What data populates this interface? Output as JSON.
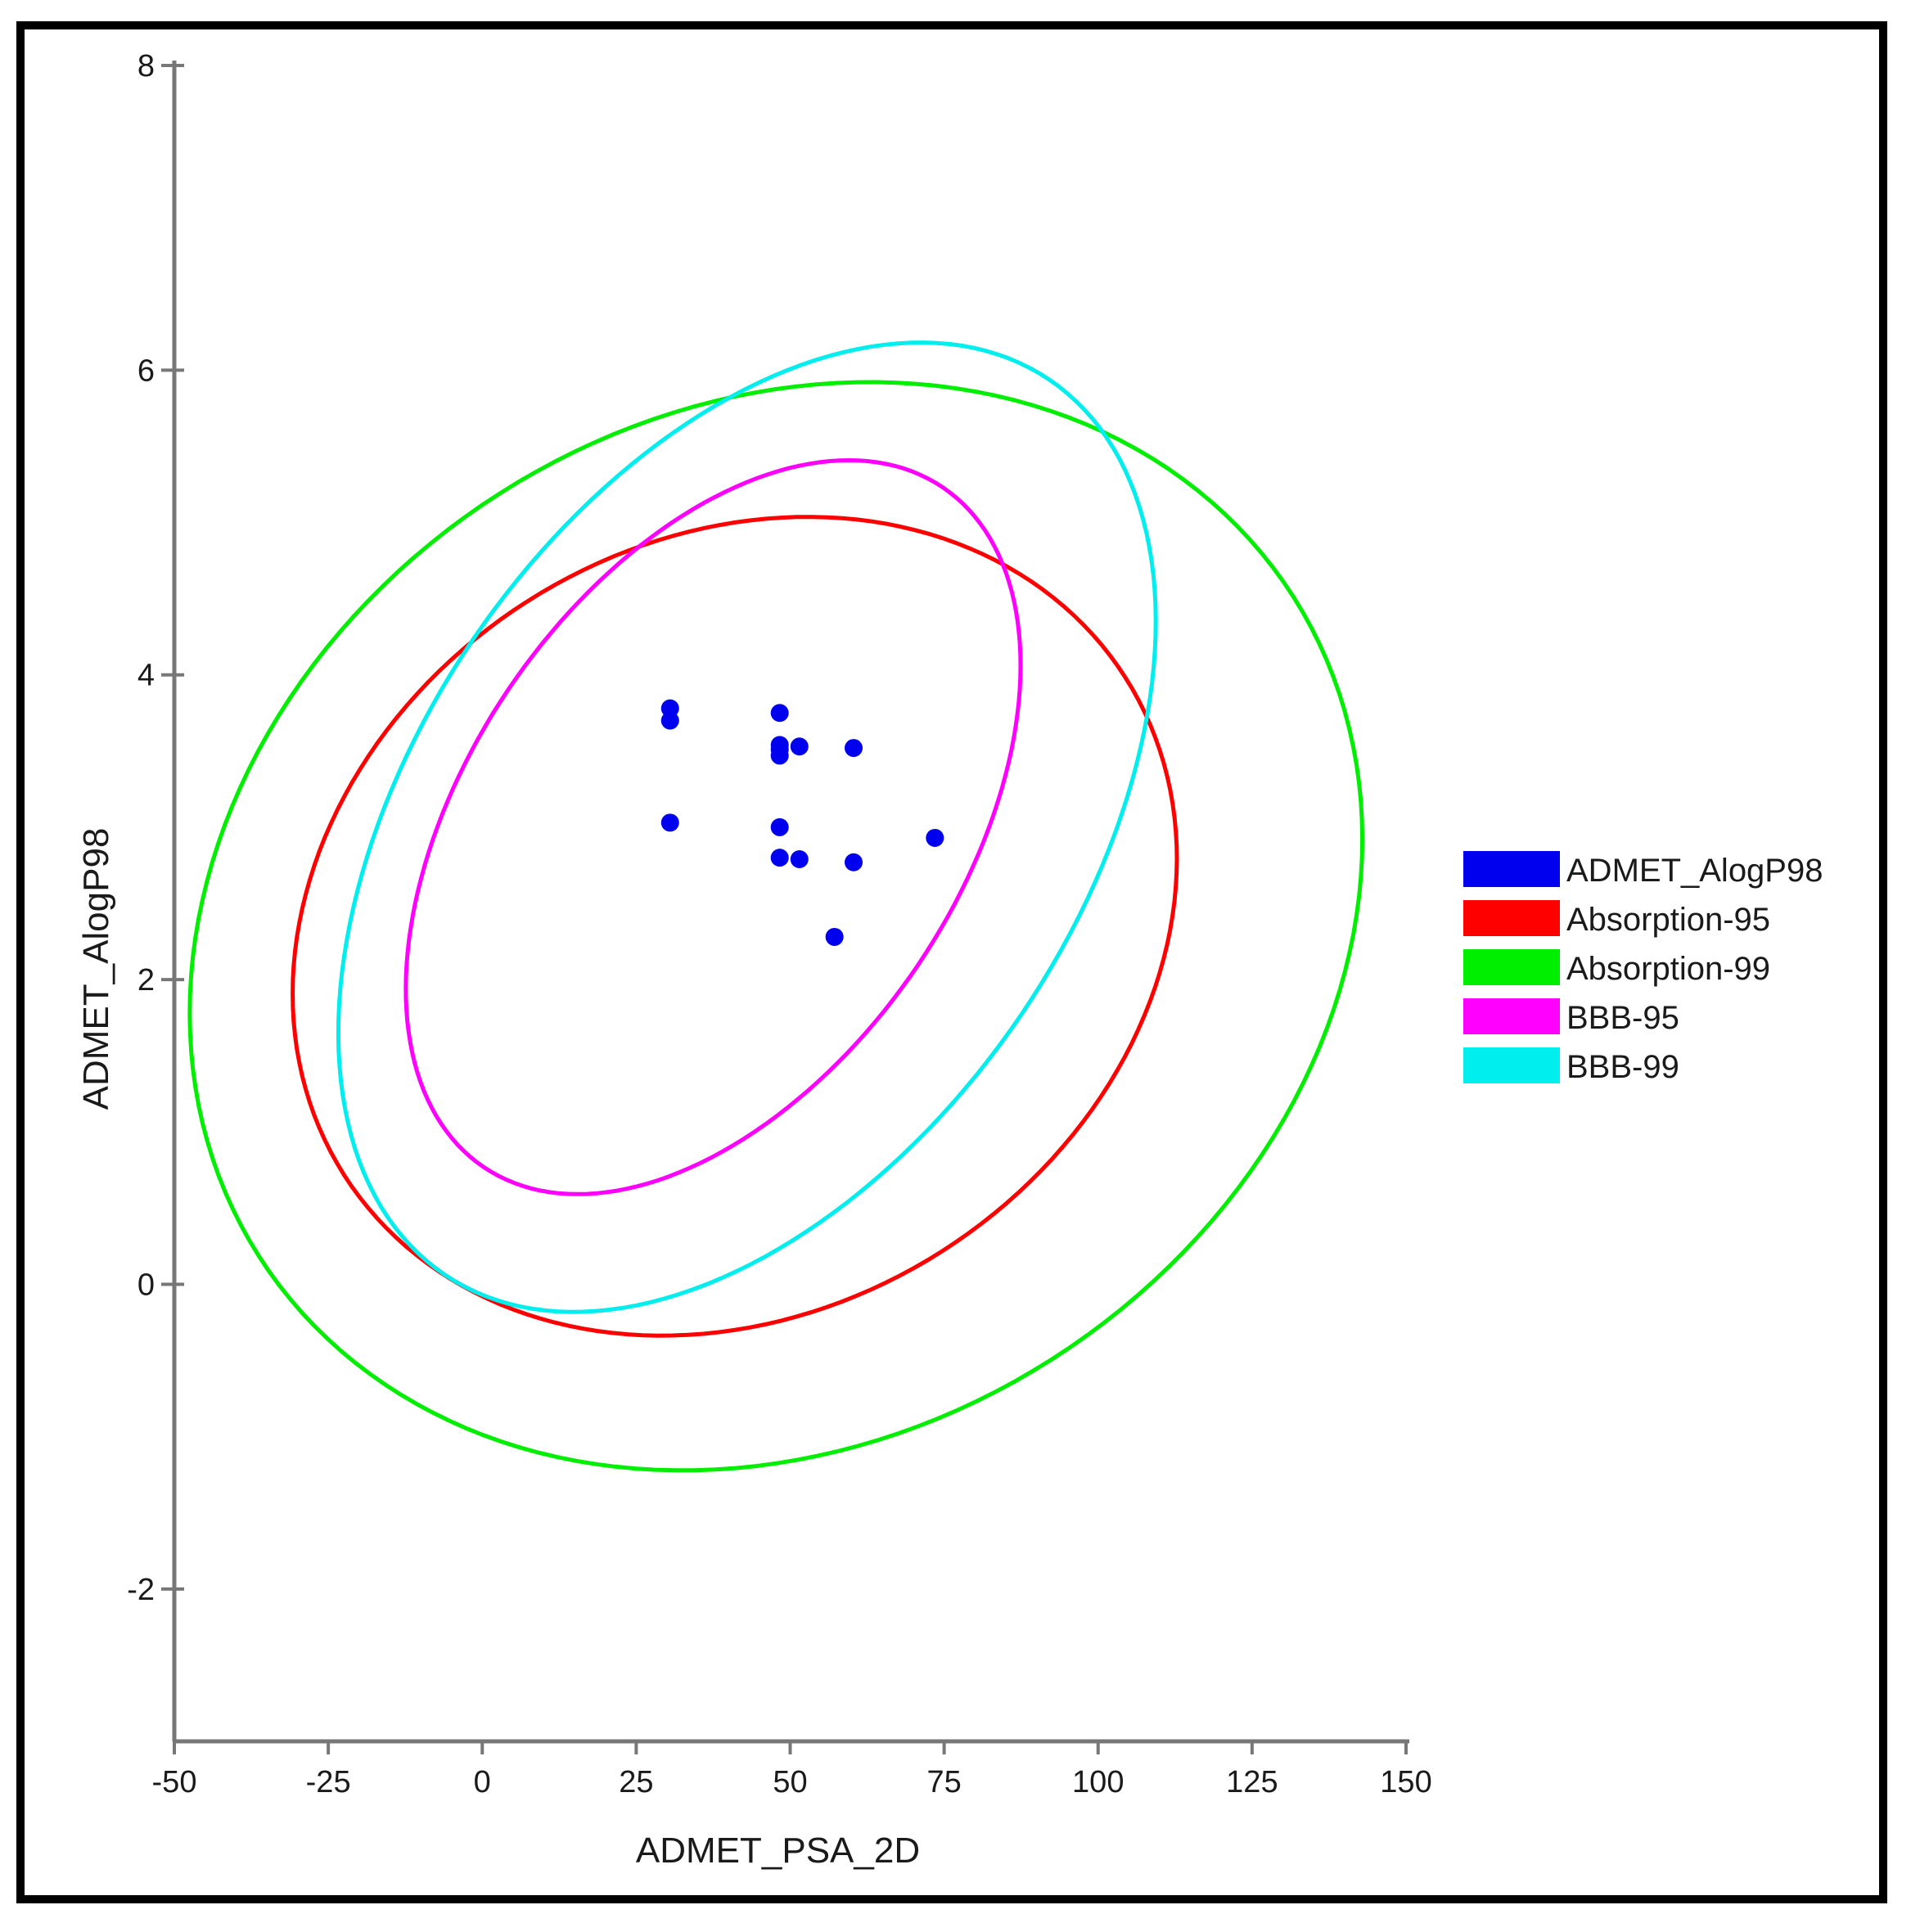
{
  "chart_data": {
    "type": "scatter",
    "title": "",
    "xlabel": "ADMET_PSA_2D",
    "ylabel": "ADMET_AlogP98",
    "xlim": [
      -50,
      150
    ],
    "ylim": [
      -3,
      8
    ],
    "xticks": [
      -50,
      -25,
      0,
      25,
      50,
      75,
      100,
      125,
      150
    ],
    "yticks": [
      -2,
      0,
      2,
      4,
      6,
      8
    ],
    "xtick_labels": [
      "-50",
      "-25",
      "0",
      "25",
      "50",
      "75",
      "100",
      "125",
      "150"
    ],
    "ytick_labels": [
      "-2",
      "0",
      "2",
      "4",
      "6",
      "8"
    ],
    "grid": false,
    "legend_position": "right",
    "points": {
      "name": "ADMET_AlogP98",
      "color": "#0000ee",
      "x": [
        30.5,
        30.5,
        30.5,
        48.3,
        48.3,
        48.3,
        48.3,
        51.5,
        48.3,
        48.3,
        51.5,
        60.3,
        60.3,
        73.5,
        57.2
      ],
      "y": [
        3.78,
        3.7,
        3.03,
        3.75,
        3.54,
        3.47,
        3.51,
        3.53,
        3.0,
        2.8,
        2.79,
        3.52,
        2.77,
        2.93,
        2.28
      ]
    },
    "series": [
      {
        "name": "Absorption-95",
        "color": "#ff0000",
        "kind": "ellipse",
        "center": [
          41.0,
          2.35
        ],
        "semi_axes": [
          75.2,
          2.53
        ],
        "angle_deg": -32.5
      },
      {
        "name": "Absorption-99",
        "color": "#00ee00",
        "kind": "ellipse",
        "center": [
          47.7,
          2.35
        ],
        "semi_axes": [
          99.6,
          3.37
        ],
        "angle_deg": -32.5
      },
      {
        "name": "BBB-95",
        "color": "#ff00ff",
        "kind": "ellipse",
        "center": [
          37.5,
          3.0
        ],
        "semi_axes": [
          66.6,
          1.62
        ],
        "angle_deg": -56.0
      },
      {
        "name": "BBB-99",
        "color": "#00eeee",
        "kind": "ellipse",
        "center": [
          43.0,
          3.0
        ],
        "semi_axes": [
          87.7,
          2.18
        ],
        "angle_deg": -56.0
      }
    ],
    "legend": [
      "ADMET_AlogP98",
      "Absorption-95",
      "Absorption-99",
      "BBB-95",
      "BBB-99"
    ]
  }
}
